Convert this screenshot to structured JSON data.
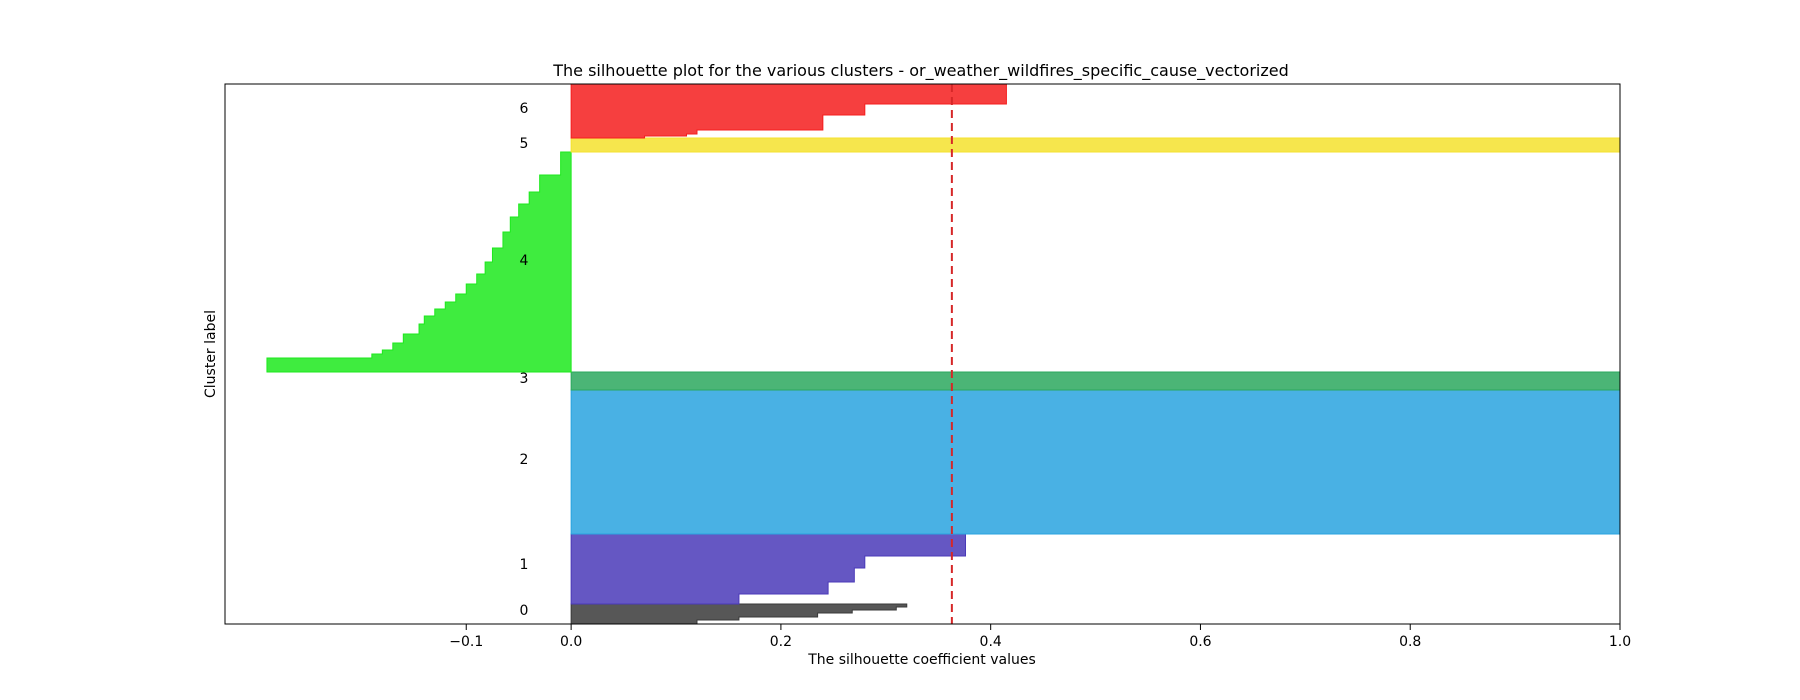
{
  "chart_data": {
    "type": "area",
    "title": "The silhouette plot for the various clusters - or_weather_wildfires_specific_cause_vectorized",
    "xlabel": "The silhouette coefficient values",
    "ylabel": "Cluster label",
    "xlim": [
      -0.33,
      1.0
    ],
    "ylim": [
      0,
      540
    ],
    "x_ticks": [
      {
        "value": -0.1,
        "label": "−0.1"
      },
      {
        "value": 0.0,
        "label": "0.0"
      },
      {
        "value": 0.2,
        "label": "0.2"
      },
      {
        "value": 0.4,
        "label": "0.4"
      },
      {
        "value": 0.6,
        "label": "0.6"
      },
      {
        "value": 0.8,
        "label": "0.8"
      },
      {
        "value": 1.0,
        "label": "1.0"
      }
    ],
    "average_silhouette": 0.363,
    "average_line_color": "#d62728",
    "clusters": [
      {
        "label": "0",
        "color": "#3a3a3a",
        "label_y": 14,
        "profile": [
          [
            0,
            0.12
          ],
          [
            4,
            0.16
          ],
          [
            7,
            0.235
          ],
          [
            11,
            0.268
          ],
          [
            14,
            0.31
          ],
          [
            17,
            0.32
          ],
          [
            20,
            0.32
          ]
        ]
      },
      {
        "label": "1",
        "color": "#4a3ab8",
        "label_y": 60,
        "profile": [
          [
            20,
            0.16
          ],
          [
            25,
            0.16
          ],
          [
            30,
            0.245
          ],
          [
            36,
            0.245
          ],
          [
            42,
            0.27
          ],
          [
            50,
            0.27
          ],
          [
            56,
            0.28
          ],
          [
            66,
            0.28
          ],
          [
            68,
            0.376
          ],
          [
            90,
            0.376
          ]
        ]
      },
      {
        "label": "2",
        "color": "#29a3df",
        "label_y": 165,
        "profile": [
          [
            90,
            1.0
          ],
          [
            234,
            1.0
          ]
        ]
      },
      {
        "label": "3",
        "color": "#2ba85e",
        "label_y": 246,
        "profile": [
          [
            234,
            1.0
          ],
          [
            252,
            1.0
          ]
        ]
      },
      {
        "label": "4",
        "color": "#1de91d",
        "label_y": 364,
        "profile": [
          [
            252,
            -0.29
          ],
          [
            266,
            -0.19
          ],
          [
            270,
            -0.18
          ],
          [
            274,
            -0.17
          ],
          [
            281,
            -0.16
          ],
          [
            290,
            -0.145
          ],
          [
            300,
            -0.14
          ],
          [
            308,
            -0.13
          ],
          [
            315,
            -0.12
          ],
          [
            322,
            -0.11
          ],
          [
            330,
            -0.1
          ],
          [
            340,
            -0.09
          ],
          [
            350,
            -0.082
          ],
          [
            362,
            -0.075
          ],
          [
            376,
            -0.065
          ],
          [
            392,
            -0.058
          ],
          [
            407,
            -0.05
          ],
          [
            420,
            -0.04
          ],
          [
            432,
            -0.03
          ],
          [
            449,
            -0.01
          ],
          [
            472,
            0
          ]
        ]
      },
      {
        "label": "5",
        "color": "#f4e22e",
        "label_y": 481,
        "profile": [
          [
            472,
            1.0
          ],
          [
            486,
            1.0
          ]
        ]
      },
      {
        "label": "6",
        "color": "#f51d1d",
        "label_y": 516,
        "profile": [
          [
            486,
            0.07
          ],
          [
            488,
            0.11
          ],
          [
            490,
            0.12
          ],
          [
            494,
            0.24
          ],
          [
            509,
            0.28
          ],
          [
            520,
            0.415
          ],
          [
            540,
            0.415
          ]
        ]
      }
    ]
  }
}
